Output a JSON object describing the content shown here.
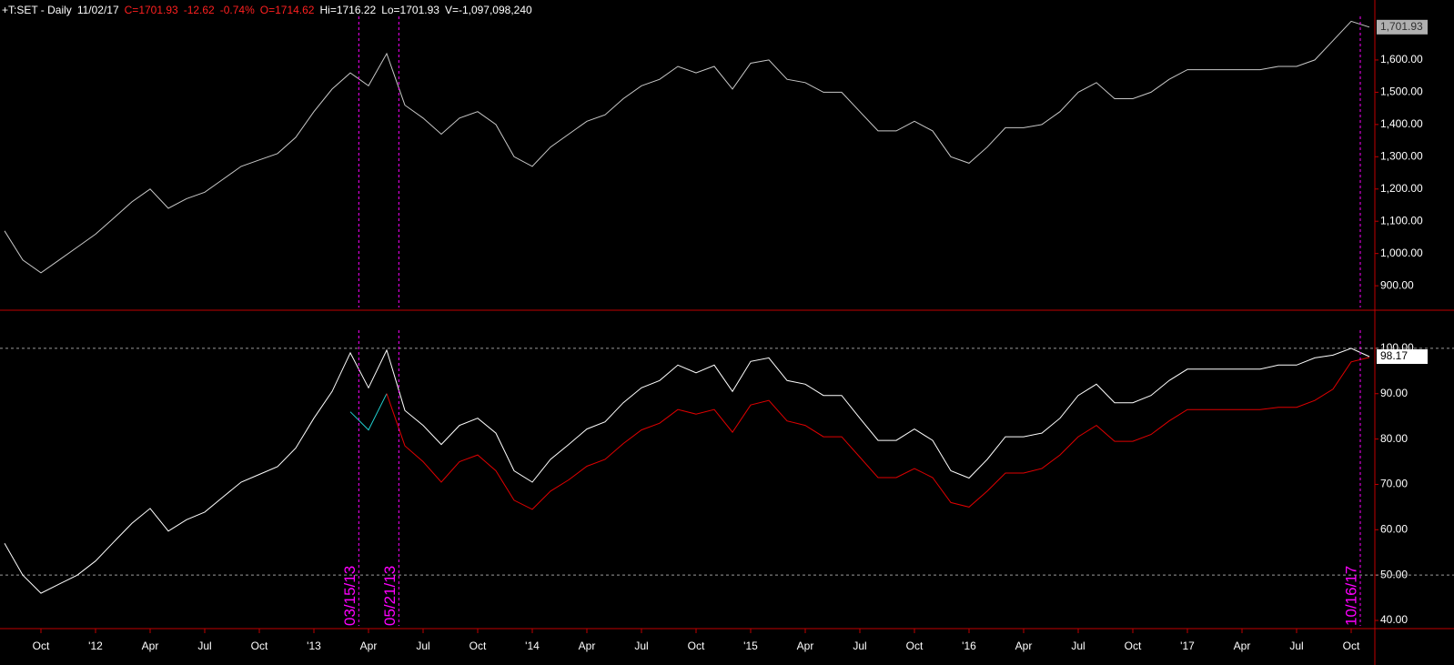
{
  "chart_data": [
    {
      "type": "line",
      "header": [
        {
          "text": "+T:SET - Daily",
          "color": "#ffffff"
        },
        {
          "text": "11/02/17",
          "color": "#ffffff"
        },
        {
          "text": "C=1701.93",
          "color": "#ff2020"
        },
        {
          "text": "-12.62",
          "color": "#ff2020"
        },
        {
          "text": "-0.74%",
          "color": "#ff2020"
        },
        {
          "text": "O=1714.62",
          "color": "#ff2020"
        },
        {
          "text": "Hi=1716.22",
          "color": "#ffffff"
        },
        {
          "text": "Lo=1701.93",
          "color": "#ffffff"
        },
        {
          "text": "V=-1,097,098,240",
          "color": "#ffffff"
        }
      ],
      "x": [
        "2011-08",
        "2011-09",
        "2011-10",
        "2011-11",
        "2011-12",
        "2012-01",
        "2012-02",
        "2012-03",
        "2012-04",
        "2012-05",
        "2012-06",
        "2012-07",
        "2012-08",
        "2012-09",
        "2012-10",
        "2012-11",
        "2012-12",
        "2013-01",
        "2013-02",
        "2013-03",
        "2013-04",
        "2013-05",
        "2013-06",
        "2013-07",
        "2013-08",
        "2013-09",
        "2013-10",
        "2013-11",
        "2013-12",
        "2014-01",
        "2014-02",
        "2014-03",
        "2014-04",
        "2014-05",
        "2014-06",
        "2014-07",
        "2014-08",
        "2014-09",
        "2014-10",
        "2014-11",
        "2014-12",
        "2015-01",
        "2015-02",
        "2015-03",
        "2015-04",
        "2015-05",
        "2015-06",
        "2015-07",
        "2015-08",
        "2015-09",
        "2015-10",
        "2015-11",
        "2015-12",
        "2016-01",
        "2016-02",
        "2016-03",
        "2016-04",
        "2016-05",
        "2016-06",
        "2016-07",
        "2016-08",
        "2016-09",
        "2016-10",
        "2016-11",
        "2016-12",
        "2017-01",
        "2017-02",
        "2017-03",
        "2017-04",
        "2017-05",
        "2017-06",
        "2017-07",
        "2017-08",
        "2017-09",
        "2017-10",
        "2017-11"
      ],
      "series": [
        {
          "color": "#c8c8c8",
          "values": [
            1070,
            980,
            940,
            980,
            1020,
            1060,
            1110,
            1160,
            1200,
            1140,
            1170,
            1190,
            1230,
            1270,
            1290,
            1310,
            1360,
            1440,
            1510,
            1560,
            1520,
            1620,
            1460,
            1420,
            1370,
            1420,
            1440,
            1400,
            1300,
            1270,
            1330,
            1370,
            1410,
            1430,
            1480,
            1520,
            1540,
            1580,
            1560,
            1580,
            1510,
            1590,
            1600,
            1540,
            1530,
            1500,
            1500,
            1440,
            1380,
            1380,
            1410,
            1380,
            1300,
            1280,
            1330,
            1390,
            1390,
            1400,
            1440,
            1500,
            1530,
            1480,
            1480,
            1500,
            1540,
            1570,
            1570,
            1570,
            1570,
            1570,
            1580,
            1580,
            1600,
            1660,
            1720,
            1701.93
          ]
        }
      ],
      "last_value_label": "1,701.93",
      "ylim": [
        827,
        1786
      ],
      "yticks": [
        {
          "value": 900,
          "label": "900.00"
        },
        {
          "value": 1000,
          "label": "1,000.00"
        },
        {
          "value": 1100,
          "label": "1,100.00"
        },
        {
          "value": 1200,
          "label": "1,200.00"
        },
        {
          "value": 1300,
          "label": "1,300.00"
        },
        {
          "value": 1400,
          "label": "1,400.00"
        },
        {
          "value": 1500,
          "label": "1,500.00"
        },
        {
          "value": 1600,
          "label": "1,600.00"
        }
      ]
    },
    {
      "type": "line",
      "x": [
        "2011-08",
        "2011-09",
        "2011-10",
        "2011-11",
        "2011-12",
        "2012-01",
        "2012-02",
        "2012-03",
        "2012-04",
        "2012-05",
        "2012-06",
        "2012-07",
        "2012-08",
        "2012-09",
        "2012-10",
        "2012-11",
        "2012-12",
        "2013-01",
        "2013-02",
        "2013-03",
        "2013-04",
        "2013-05",
        "2013-06",
        "2013-07",
        "2013-08",
        "2013-09",
        "2013-10",
        "2013-11",
        "2013-12",
        "2014-01",
        "2014-02",
        "2014-03",
        "2014-04",
        "2014-05",
        "2014-06",
        "2014-07",
        "2014-08",
        "2014-09",
        "2014-10",
        "2014-11",
        "2014-12",
        "2015-01",
        "2015-02",
        "2015-03",
        "2015-04",
        "2015-05",
        "2015-06",
        "2015-07",
        "2015-08",
        "2015-09",
        "2015-10",
        "2015-11",
        "2015-12",
        "2016-01",
        "2016-02",
        "2016-03",
        "2016-04",
        "2016-05",
        "2016-06",
        "2016-07",
        "2016-08",
        "2016-09",
        "2016-10",
        "2016-11",
        "2016-12",
        "2017-01",
        "2017-02",
        "2017-03",
        "2017-04",
        "2017-05",
        "2017-06",
        "2017-07",
        "2017-08",
        "2017-09",
        "2017-10",
        "2017-11"
      ],
      "series": [
        {
          "color": "#ffffff",
          "values": [
            57,
            50,
            46,
            48,
            50,
            53.1,
            57.3,
            61.4,
            64.7,
            59.7,
            62.2,
            63.9,
            67.2,
            70.5,
            72.2,
            73.9,
            78,
            84.6,
            90.5,
            99,
            91.3,
            99.6,
            86.3,
            83,
            78.8,
            83,
            84.6,
            81.3,
            73,
            70.5,
            75.5,
            78.8,
            82.2,
            83.8,
            88,
            91.3,
            92.9,
            96.3,
            94.6,
            96.3,
            90.5,
            97.1,
            97.9,
            92.9,
            92.1,
            89.6,
            89.6,
            84.6,
            79.7,
            79.7,
            82.2,
            79.7,
            73,
            71.4,
            75.5,
            80.5,
            80.5,
            81.3,
            84.6,
            89.6,
            92.1,
            88,
            88,
            89.6,
            92.9,
            95.4,
            95.4,
            95.4,
            95.4,
            95.4,
            96.3,
            96.3,
            97.9,
            98.5,
            100,
            98.17
          ]
        },
        {
          "color": "#20d0d0",
          "values": [
            null,
            null,
            null,
            null,
            null,
            null,
            null,
            null,
            null,
            null,
            null,
            null,
            null,
            null,
            null,
            null,
            null,
            null,
            null,
            86,
            82,
            90,
            null,
            null,
            null,
            null,
            null,
            null,
            null,
            null,
            null,
            null,
            null,
            null,
            null,
            null,
            null,
            null,
            null,
            null,
            null,
            null,
            null,
            null,
            null,
            null,
            null,
            null,
            null,
            null,
            null,
            null,
            null,
            null,
            null,
            null,
            null,
            null,
            null,
            null,
            null,
            null,
            null,
            null,
            null,
            null,
            null,
            null,
            null,
            null,
            null,
            null,
            null,
            null,
            null,
            null
          ]
        },
        {
          "color": "#e00000",
          "values": [
            null,
            null,
            null,
            null,
            null,
            null,
            null,
            null,
            null,
            null,
            null,
            null,
            null,
            null,
            null,
            null,
            null,
            null,
            null,
            null,
            null,
            90,
            78.5,
            75,
            70.5,
            75,
            76.5,
            73,
            66.5,
            64.5,
            68.5,
            71,
            74,
            75.5,
            79,
            82,
            83.5,
            86.5,
            85.5,
            86.5,
            81.5,
            87.5,
            88.5,
            84,
            83,
            80.5,
            80.5,
            76,
            71.5,
            71.5,
            73.5,
            71.5,
            66,
            65,
            68.5,
            72.5,
            72.5,
            73.5,
            76.5,
            80.5,
            83,
            79.5,
            79.5,
            81,
            84,
            86.5,
            86.5,
            86.5,
            86.5,
            86.5,
            87,
            87,
            88.5,
            91,
            97,
            98
          ]
        }
      ],
      "ylim": [
        38.4,
        107.6
      ],
      "yticks": [
        {
          "value": 40,
          "label": "40.00"
        },
        {
          "value": 50,
          "label": "50.00"
        },
        {
          "value": 60,
          "label": "60.00"
        },
        {
          "value": 70,
          "label": "70.00"
        },
        {
          "value": 80,
          "label": "80.00"
        },
        {
          "value": 90,
          "label": "90.00"
        },
        {
          "value": 100,
          "label": "100.00"
        }
      ],
      "hlines": [
        100,
        50
      ],
      "xticks": [
        {
          "value": "2011-10",
          "label": "Oct"
        },
        {
          "value": "2012-01",
          "label": "'12"
        },
        {
          "value": "2012-04",
          "label": "Apr"
        },
        {
          "value": "2012-07",
          "label": "Jul"
        },
        {
          "value": "2012-10",
          "label": "Oct"
        },
        {
          "value": "2013-01",
          "label": "'13"
        },
        {
          "value": "2013-04",
          "label": "Apr"
        },
        {
          "value": "2013-07",
          "label": "Jul"
        },
        {
          "value": "2013-10",
          "label": "Oct"
        },
        {
          "value": "2014-01",
          "label": "'14"
        },
        {
          "value": "2014-04",
          "label": "Apr"
        },
        {
          "value": "2014-07",
          "label": "Jul"
        },
        {
          "value": "2014-10",
          "label": "Oct"
        },
        {
          "value": "2015-01",
          "label": "'15"
        },
        {
          "value": "2015-04",
          "label": "Apr"
        },
        {
          "value": "2015-07",
          "label": "Jul"
        },
        {
          "value": "2015-10",
          "label": "Oct"
        },
        {
          "value": "2016-01",
          "label": "'16"
        },
        {
          "value": "2016-04",
          "label": "Apr"
        },
        {
          "value": "2016-07",
          "label": "Jul"
        },
        {
          "value": "2016-10",
          "label": "Oct"
        },
        {
          "value": "2017-01",
          "label": "'17"
        },
        {
          "value": "2017-04",
          "label": "Apr"
        },
        {
          "value": "2017-07",
          "label": "Jul"
        },
        {
          "value": "2017-10",
          "label": "Oct"
        }
      ],
      "markers": [
        "03/15/13",
        "05/21/13",
        "10/16/17"
      ],
      "marker_color": "#ff00ff"
    }
  ]
}
